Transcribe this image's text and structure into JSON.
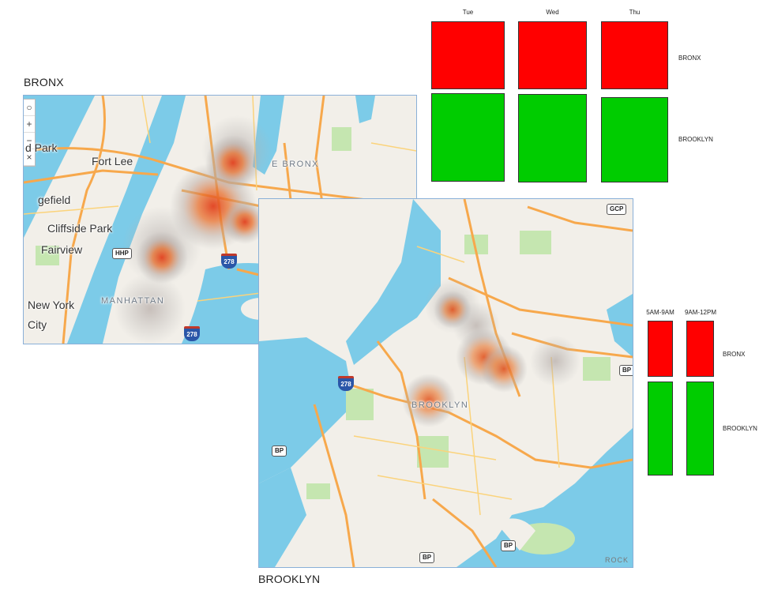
{
  "bronx_title": "BRONX",
  "brooklyn_title": "BROOKLYN",
  "bronx_map": {
    "labels": {
      "fort_lee": "Fort Lee",
      "cliffside_park": "Cliffside Park",
      "fairview": "Fairview",
      "new_york_city_line1": "New York",
      "new_york_city_line2": "City",
      "ridgefield": "gefield",
      "park": "d Park",
      "manhattan": "MANHATTAN",
      "the_bronx": "E BRONX"
    },
    "shields": {
      "hhp": "HHP",
      "i278_a": "278",
      "i278_b": "278"
    },
    "controls": [
      "○",
      "+",
      "−",
      "×"
    ]
  },
  "brooklyn_map": {
    "labels": {
      "brooklyn": "BROOKLYN",
      "rock": "ROCK"
    },
    "shields": {
      "gcp": "GCP",
      "bp_1": "BP",
      "bp_2": "BP",
      "bp_3": "BP",
      "bp_4": "BP",
      "i278": "278"
    }
  },
  "day_grid": {
    "columns": [
      "Tue",
      "Wed",
      "Thu"
    ],
    "rows": [
      {
        "label": "BRONX",
        "colors": [
          "#ff0000",
          "#ff0000",
          "#ff0000"
        ]
      },
      {
        "label": "BROOKLYN",
        "colors": [
          "#00cc00",
          "#00cc00",
          "#00cc00"
        ]
      }
    ]
  },
  "time_grid": {
    "columns": [
      "5AM-9AM",
      "9AM-12PM"
    ],
    "rows": [
      {
        "label": "BRONX",
        "colors": [
          "#ff0000",
          "#ff0000"
        ]
      },
      {
        "label": "BROOKLYN",
        "colors": [
          "#00cc00",
          "#00cc00"
        ]
      }
    ]
  },
  "colors": {
    "water": "#7ccbe8",
    "land": "#f2efe9",
    "road": "#f7a84c",
    "park": "#c5e6b0",
    "heat": "#e8652a"
  }
}
